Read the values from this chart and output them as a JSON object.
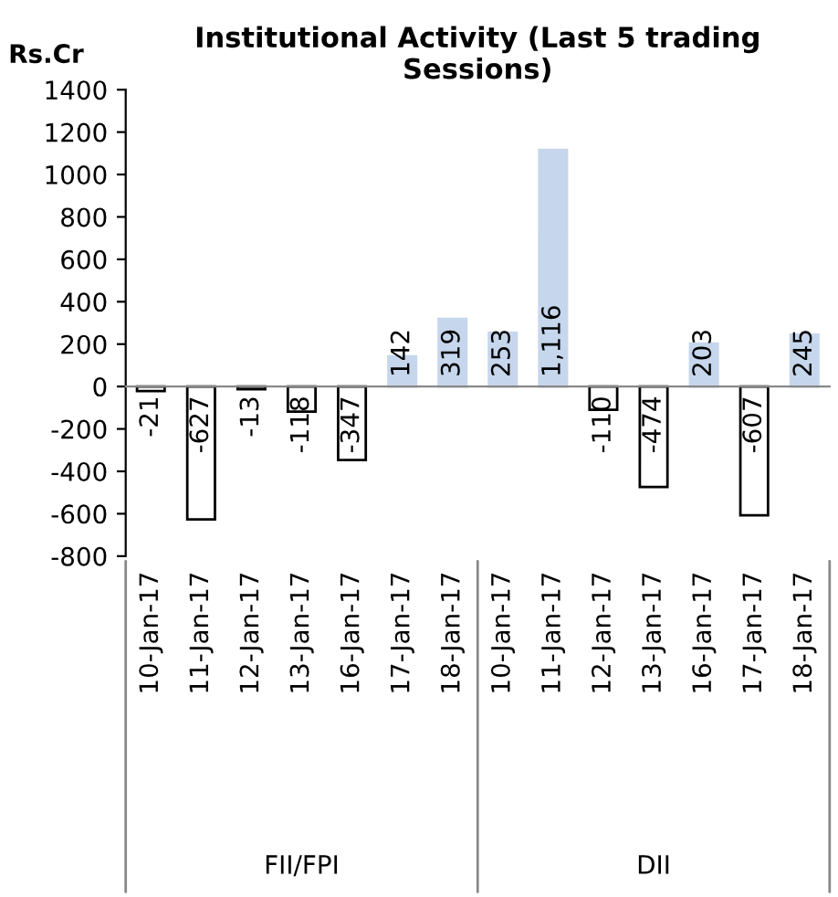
{
  "chart_data": {
    "type": "bar",
    "title": "Institutional Activity (Last 5 trading Sessions)",
    "ylabel": "Rs.Cr",
    "categories": [
      "10-Jan-17",
      "11-Jan-17",
      "12-Jan-17",
      "13-Jan-17",
      "16-Jan-17",
      "17-Jan-17",
      "18-Jan-17",
      "10-Jan-17",
      "11-Jan-17",
      "12-Jan-17",
      "13-Jan-17",
      "16-Jan-17",
      "17-Jan-17",
      "18-Jan-17"
    ],
    "values": [
      -21,
      -627,
      -13,
      -118,
      -347,
      142,
      319,
      253,
      1116,
      -110,
      -474,
      203,
      -607,
      245
    ],
    "value_labels": [
      "-21",
      "-627",
      "-13",
      "-118",
      "-347",
      "142",
      "319",
      "253",
      "1,116",
      "-110",
      "-474",
      "203",
      "-607",
      "245"
    ],
    "colors": [
      "#ffffff",
      "#ffffff",
      "#ffffff",
      "#ffffff",
      "#ffffff",
      "#c6d6ec",
      "#c6d6ec",
      "#c6d6ec",
      "#c6d6ec",
      "#ffffff",
      "#ffffff",
      "#c6d6ec",
      "#ffffff",
      "#c6d6ec"
    ],
    "ylim": [
      -800,
      1400
    ],
    "yticks": [
      -800,
      -600,
      -400,
      -200,
      0,
      200,
      400,
      600,
      800,
      1000,
      1200,
      1400
    ],
    "annotations": [
      "FII/FPI",
      "DII"
    ],
    "legend": false
  }
}
